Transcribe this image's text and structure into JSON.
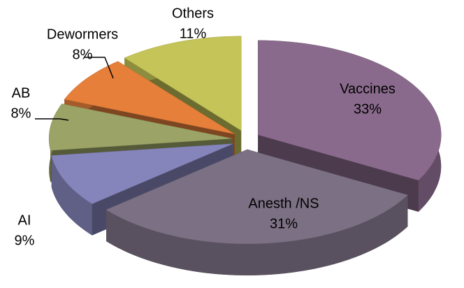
{
  "chart_data": {
    "type": "pie3d",
    "categories": [
      "Vaccines",
      "Anesth /NS",
      "AI",
      "AB",
      "Dewormers",
      "Others"
    ],
    "values": [
      33,
      31,
      9,
      8,
      8,
      11
    ],
    "value_labels": [
      "33%",
      "31%",
      "9%",
      "8%",
      "8%",
      "11%"
    ],
    "colors": [
      "#8a6a8c",
      "#7c7184",
      "#8585bc",
      "#9ba466",
      "#e57f3a",
      "#c4c458"
    ]
  }
}
